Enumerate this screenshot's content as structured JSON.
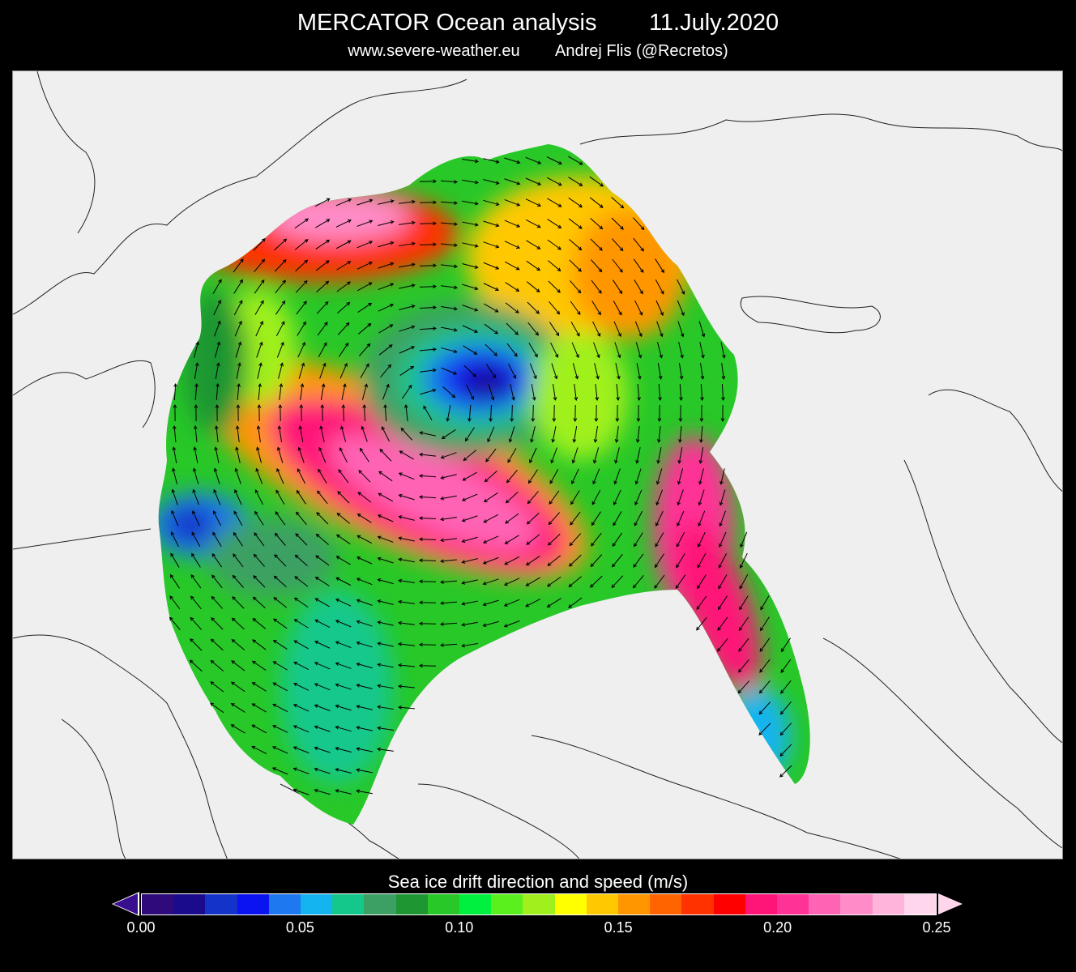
{
  "header": {
    "title": "MERCATOR Ocean analysis        11.July.2020",
    "subtitle": "www.severe-weather.eu        Andrej Flis (@Recretos)"
  },
  "legend": {
    "title": "Sea ice drift direction and speed (m/s)",
    "min": 0.0,
    "max": 0.25,
    "tick_labels": [
      "0.00",
      "0.05",
      "0.10",
      "0.15",
      "0.20",
      "0.25"
    ],
    "colors": [
      "#2e0a7a",
      "#1a0a8c",
      "#1433c8",
      "#0a14f0",
      "#1e78f0",
      "#14b4f0",
      "#14c88c",
      "#3ca064",
      "#1e9632",
      "#28c828",
      "#00f040",
      "#5af01e",
      "#a0f01e",
      "#ffff00",
      "#ffc800",
      "#ff9600",
      "#ff6400",
      "#ff3200",
      "#ff0000",
      "#ff1478",
      "#ff3296",
      "#ff64b4",
      "#ff8cc8",
      "#ffb4dc",
      "#ffd6ec"
    ]
  },
  "map": {
    "land_color": "#efefef",
    "coast_color": "#222222",
    "drift_arrow_color": "#000000"
  }
}
